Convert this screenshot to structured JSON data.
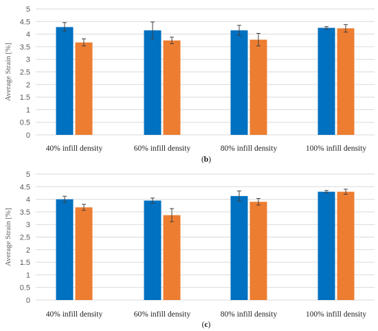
{
  "colors": {
    "series_a": "#0070C0",
    "series_b": "#ED7D31",
    "grid": "#D9D9D9",
    "errorbar": "#404040"
  },
  "chart_data": [
    {
      "type": "bar",
      "caption_prefix": "(",
      "caption_letter": "b",
      "caption_suffix": ")",
      "categories": [
        "40% infill density",
        "60% infill density",
        "80% infill density",
        "100% infill density"
      ],
      "ylabel": "Average Strain [%]",
      "ylim": [
        0,
        5
      ],
      "yticks": [
        "0",
        "0.5",
        "1",
        "1.5",
        "2",
        "2.5",
        "3",
        "3.5",
        "4",
        "4.5",
        "5"
      ],
      "grid": true,
      "series": [
        {
          "values": [
            4.28,
            4.15,
            4.15,
            4.25
          ],
          "errors": [
            0.18,
            0.33,
            0.2,
            0.05
          ]
        },
        {
          "values": [
            3.67,
            3.75,
            3.78,
            4.23
          ],
          "errors": [
            0.14,
            0.13,
            0.25,
            0.15
          ]
        }
      ]
    },
    {
      "type": "bar",
      "caption_prefix": "(",
      "caption_letter": "c",
      "caption_suffix": ")",
      "categories": [
        "40% infill density",
        "60% infill density",
        "80% infill density",
        "100% infill density"
      ],
      "ylabel": "Average Strain [%]",
      "ylim": [
        0,
        5
      ],
      "yticks": [
        "0",
        "0.5",
        "1",
        "1.5",
        "2",
        "2.5",
        "3",
        "3.5",
        "4",
        "4.5",
        "5"
      ],
      "grid": true,
      "series": [
        {
          "values": [
            4.0,
            3.95,
            4.13,
            4.3
          ],
          "errors": [
            0.12,
            0.1,
            0.2,
            0.05
          ]
        },
        {
          "values": [
            3.68,
            3.37,
            3.9,
            4.3
          ],
          "errors": [
            0.12,
            0.26,
            0.13,
            0.1
          ]
        }
      ]
    }
  ]
}
